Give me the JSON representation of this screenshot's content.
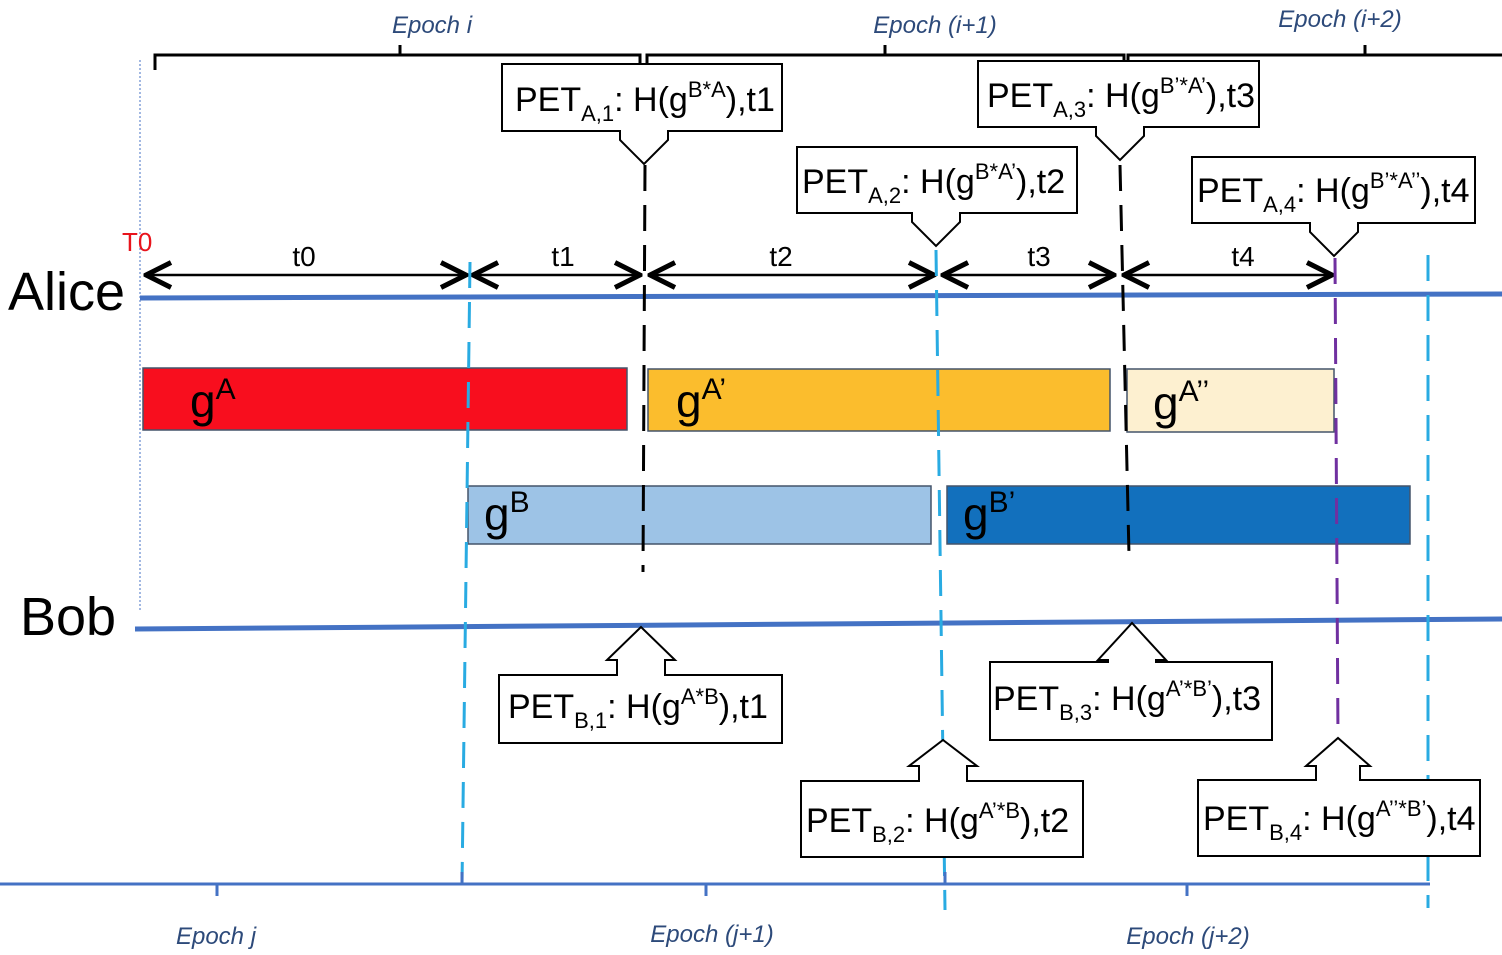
{
  "alice": {
    "label": "Alice"
  },
  "bob": {
    "label": "Bob"
  },
  "t0_marker": "T0",
  "epochs_alice": [
    "Epoch i",
    "Epoch (i+1)",
    "Epoch (i+2)"
  ],
  "epochs_bob": [
    "Epoch j",
    "Epoch (j+1)",
    "Epoch (j+2)"
  ],
  "intervals": [
    "t0",
    "t1",
    "t2",
    "t3",
    "t4"
  ],
  "keys": {
    "gA": {
      "base": "g",
      "sup": "A",
      "color": "#f80e1e"
    },
    "gA1": {
      "base": "g",
      "sup": "A’",
      "color": "#fbbd2d"
    },
    "gA2": {
      "base": "g",
      "sup": "A’’",
      "color": "#fdf0d0"
    },
    "gB": {
      "base": "g",
      "sup": "B",
      "color": "#9dc3e6"
    },
    "gB1": {
      "base": "g",
      "sup": "B’",
      "color": "#1270bd"
    }
  },
  "pets": {
    "A1": {
      "pre": "PET",
      "sub": "A,1",
      "mid": ": H(g",
      "sup": "B*A",
      "post": "),t1"
    },
    "A2": {
      "pre": "PET",
      "sub": "A,2",
      "mid": ": H(g",
      "sup": "B*A’",
      "post": "),t2"
    },
    "A3": {
      "pre": "PET",
      "sub": "A,3",
      "mid": ": H(g",
      "sup": "B’*A’",
      "post": "),t3"
    },
    "A4": {
      "pre": "PET",
      "sub": "A,4",
      "mid": ": H(g",
      "sup": "B’*A’’",
      "post": "),t4"
    },
    "B1": {
      "pre": "PET",
      "sub": "B,1",
      "mid": ": H(g",
      "sup": "A*B",
      "post": "),t1"
    },
    "B2": {
      "pre": "PET",
      "sub": "B,2",
      "mid": ": H(g",
      "sup": "A’*B",
      "post": "),t2"
    },
    "B3": {
      "pre": "PET",
      "sub": "B,3",
      "mid": ": H(g",
      "sup": "A’*B’",
      "post": "),t3"
    },
    "B4": {
      "pre": "PET",
      "sub": "B,4",
      "mid": ": H(g",
      "sup": "A’’*B’",
      "post": "),t4"
    }
  },
  "colors": {
    "timeline": "#4472c4",
    "cyan_dash": "#29abe2",
    "purple_dash": "#7030a0",
    "epoch_text": "#2d4a7a",
    "t0_red": "#e8141c"
  }
}
